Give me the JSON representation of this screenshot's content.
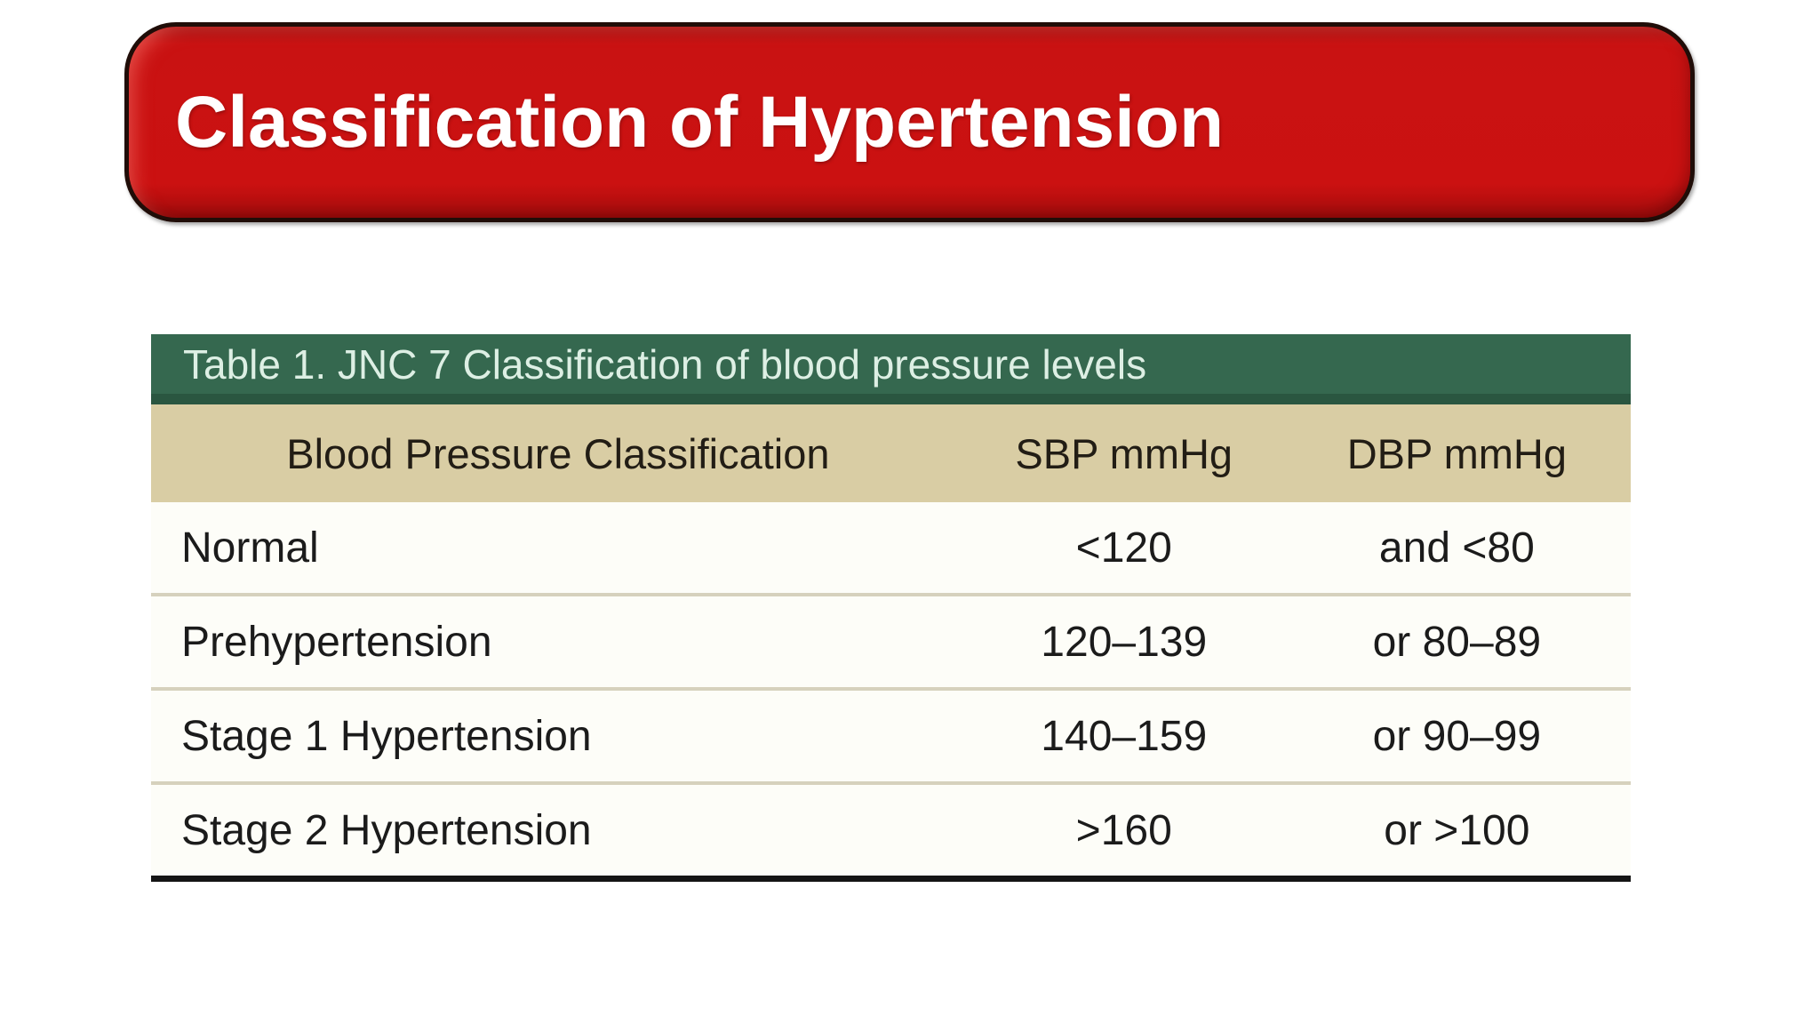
{
  "banner": {
    "title": "Classification of Hypertension",
    "bg_color": "#CB1111",
    "border_color": "#200D08",
    "text_color": "#FFFFFF"
  },
  "table": {
    "caption": "Table 1. JNC 7 Classification of blood pressure levels",
    "caption_bg_color": "#35684F",
    "caption_text_color": "#DDEFE4",
    "column_header_bg_color": "#D9CDA4",
    "body_text_color": "#1B1B1B",
    "columns": [
      "Blood Pressure Classification",
      "SBP mmHg",
      "DBP mmHg"
    ],
    "rows": [
      {
        "classification": "Normal",
        "sbp": "<120",
        "dbp": "and <80"
      },
      {
        "classification": "Prehypertension",
        "sbp": "120–139",
        "dbp": "or 80–89"
      },
      {
        "classification": "Stage 1 Hypertension",
        "sbp": "140–159",
        "dbp": "or 90–99"
      },
      {
        "classification": "Stage 2 Hypertension",
        "sbp": ">160",
        "dbp": "or >100"
      }
    ]
  }
}
